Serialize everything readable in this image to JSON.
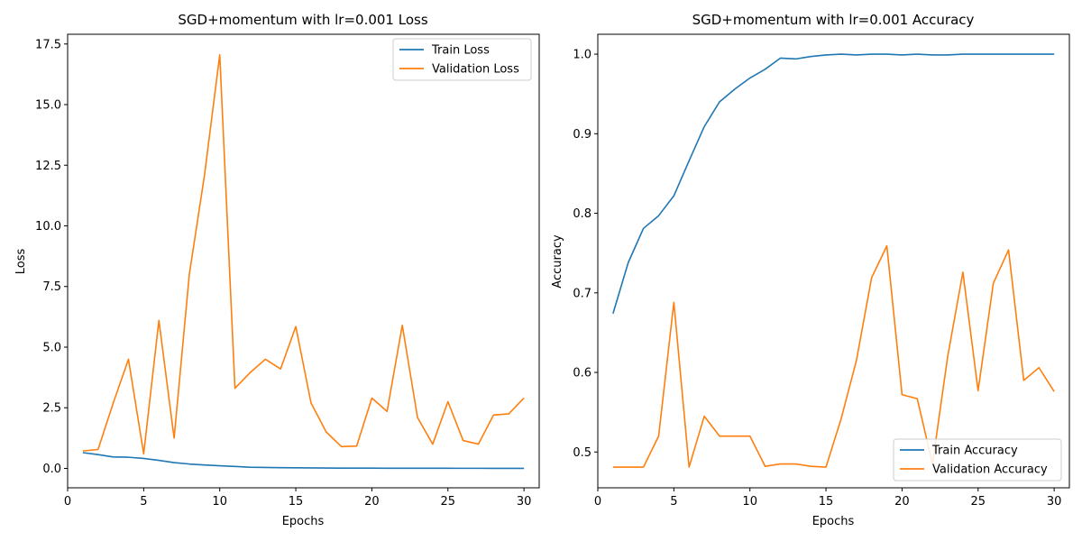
{
  "chart_data": [
    {
      "type": "line",
      "title": "SGD+momentum with lr=0.001 Loss",
      "xlabel": "Epochs",
      "ylabel": "Loss",
      "xlim": [
        0,
        31
      ],
      "ylim": [
        -0.8,
        17.9
      ],
      "xticks": [
        0,
        5,
        10,
        15,
        20,
        25,
        30
      ],
      "xtick_labels": [
        "0",
        "5",
        "10",
        "15",
        "20",
        "25",
        "30"
      ],
      "yticks": [
        0.0,
        2.5,
        5.0,
        7.5,
        10.0,
        12.5,
        15.0,
        17.5
      ],
      "ytick_labels": [
        "0.0",
        "2.5",
        "5.0",
        "7.5",
        "10.0",
        "12.5",
        "15.0",
        "17.5"
      ],
      "legend_position": "top-right",
      "grid": false,
      "x": [
        1,
        2,
        3,
        4,
        5,
        6,
        7,
        8,
        9,
        10,
        11,
        12,
        13,
        14,
        15,
        16,
        17,
        18,
        19,
        20,
        21,
        22,
        23,
        24,
        25,
        26,
        27,
        28,
        29,
        30
      ],
      "series": [
        {
          "name": "Train Loss",
          "color": "#1f77b4",
          "values": [
            0.65,
            0.57,
            0.47,
            0.46,
            0.41,
            0.33,
            0.24,
            0.18,
            0.14,
            0.11,
            0.08,
            0.05,
            0.04,
            0.03,
            0.025,
            0.02,
            0.015,
            0.012,
            0.01,
            0.01,
            0.008,
            0.007,
            0.006,
            0.005,
            0.005,
            0.004,
            0.004,
            0.003,
            0.003,
            0.003
          ]
        },
        {
          "name": "Validation Loss",
          "color": "#ff7f0e",
          "values": [
            0.72,
            0.78,
            2.7,
            4.5,
            0.6,
            6.1,
            1.25,
            8.0,
            12.1,
            17.05,
            3.3,
            3.95,
            4.5,
            4.1,
            5.85,
            2.7,
            1.5,
            0.9,
            0.92,
            2.9,
            2.35,
            5.9,
            2.1,
            1.0,
            2.75,
            1.15,
            1.0,
            2.2,
            2.25,
            2.9
          ]
        }
      ]
    },
    {
      "type": "line",
      "title": "SGD+momentum with lr=0.001 Accuracy",
      "xlabel": "Epochs",
      "ylabel": "Accuracy",
      "xlim": [
        0,
        31
      ],
      "ylim": [
        0.455,
        1.025
      ],
      "xticks": [
        0,
        5,
        10,
        15,
        20,
        25,
        30
      ],
      "xtick_labels": [
        "0",
        "5",
        "10",
        "15",
        "20",
        "25",
        "30"
      ],
      "yticks": [
        0.5,
        0.6,
        0.7,
        0.8,
        0.9,
        1.0
      ],
      "ytick_labels": [
        "0.5",
        "0.6",
        "0.7",
        "0.8",
        "0.9",
        "1.0"
      ],
      "legend_position": "bottom-right",
      "grid": false,
      "x": [
        1,
        2,
        3,
        4,
        5,
        6,
        7,
        8,
        9,
        10,
        11,
        12,
        13,
        14,
        15,
        16,
        17,
        18,
        19,
        20,
        21,
        22,
        23,
        24,
        25,
        26,
        27,
        28,
        29,
        30
      ],
      "series": [
        {
          "name": "Train Accuracy",
          "color": "#1f77b4",
          "values": [
            0.674,
            0.738,
            0.781,
            0.797,
            0.822,
            0.866,
            0.909,
            0.94,
            0.956,
            0.97,
            0.981,
            0.995,
            0.994,
            0.997,
            0.999,
            1.0,
            0.999,
            1.0,
            1.0,
            0.999,
            1.0,
            0.999,
            0.999,
            1.0,
            1.0,
            1.0,
            1.0,
            1.0,
            1.0,
            1.0
          ]
        },
        {
          "name": "Validation Accuracy",
          "color": "#ff7f0e",
          "values": [
            0.481,
            0.481,
            0.481,
            0.52,
            0.688,
            0.481,
            0.545,
            0.52,
            0.52,
            0.52,
            0.482,
            0.485,
            0.485,
            0.482,
            0.481,
            0.542,
            0.615,
            0.719,
            0.759,
            0.572,
            0.567,
            0.485,
            0.62,
            0.726,
            0.577,
            0.712,
            0.754,
            0.59,
            0.606,
            0.576
          ]
        }
      ]
    }
  ]
}
